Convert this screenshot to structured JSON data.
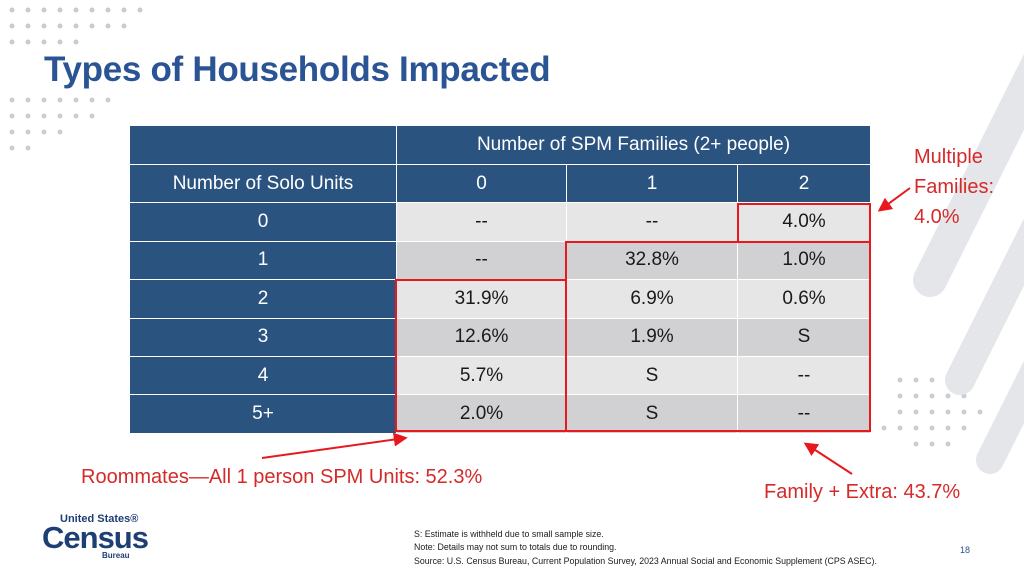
{
  "slide": {
    "title": "Types of Households Impacted",
    "page_number": "18"
  },
  "table": {
    "col_group_header": "Number of SPM Families (2+ people)",
    "row_header_label": "Number of Solo Units",
    "col_headers": [
      "0",
      "1",
      "2"
    ],
    "rows": [
      {
        "label": "0",
        "cells": [
          "--",
          "--",
          "4.0%"
        ]
      },
      {
        "label": "1",
        "cells": [
          "--",
          "32.8%",
          "1.0%"
        ]
      },
      {
        "label": "2",
        "cells": [
          "31.9%",
          "6.9%",
          "0.6%"
        ]
      },
      {
        "label": "3",
        "cells": [
          "12.6%",
          "1.9%",
          "S"
        ]
      },
      {
        "label": "4",
        "cells": [
          "5.7%",
          "S",
          "--"
        ]
      },
      {
        "label": "5+",
        "cells": [
          "2.0%",
          "S",
          "--"
        ]
      }
    ]
  },
  "callouts": {
    "multiple_line1": "Multiple",
    "multiple_line2": "Families:",
    "multiple_line3": "4.0%",
    "roommates": "Roommates—All 1 person SPM Units: 52.3%",
    "family_extra": "Family + Extra: 43.7%"
  },
  "notes": {
    "line1": "S: Estimate is withheld due to small sample size.",
    "line2": "Note: Details may not sum to totals due to rounding.",
    "line3": "Source: U.S. Census Bureau, Current Population Survey, 2023 Annual Social and Economic Supplement (CPS ASEC)."
  },
  "logo": {
    "top": "United States®",
    "main": "Census",
    "bottom": "Bureau"
  },
  "colors": {
    "title": "#2a5493",
    "header_bg": "#2b5380",
    "highlight": "#e8181f",
    "callout_text": "#d42a2a"
  }
}
